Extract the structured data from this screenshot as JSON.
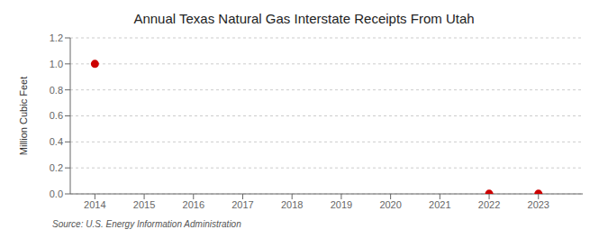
{
  "chart_data": {
    "type": "scatter",
    "title": "Annual Texas Natural Gas Interstate Receipts From Utah",
    "ylabel": "Million Cubic Feet",
    "annotation": "Source: U.S. Energy Information Administration",
    "x": [
      2014,
      2022,
      2023
    ],
    "values": [
      1.0,
      0.001,
      0.001
    ],
    "color": "#cc0000",
    "marker": "circle",
    "xlim": [
      2013.5,
      2023.9
    ],
    "xticks": [
      2014,
      2015,
      2016,
      2017,
      2018,
      2019,
      2020,
      2021,
      2022,
      2023
    ],
    "ylim": [
      0.0,
      1.2
    ],
    "yticks": [
      {
        "value": 0.0,
        "label": "0.0"
      },
      0.2,
      0.4,
      0.6,
      0.8,
      {
        "value": 1.0,
        "label": "1.0"
      },
      1.2
    ],
    "grid": true
  }
}
